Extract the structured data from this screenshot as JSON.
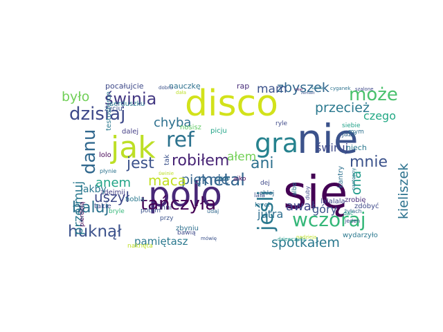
{
  "cloud": {
    "words": [
      {
        "text": "się",
        "color": "#440154",
        "vertical": false
      },
      {
        "text": "nie",
        "color": "#3b528b",
        "vertical": false
      },
      {
        "text": "disco",
        "color": "#d2e21b",
        "vertical": false
      },
      {
        "text": "polo",
        "color": "#482878",
        "vertical": false
      },
      {
        "text": "jak",
        "color": "#bddf26",
        "vertical": false
      },
      {
        "text": "gra",
        "color": "#26828e",
        "vertical": false
      },
      {
        "text": "ref",
        "color": "#2c728e",
        "vertical": false
      },
      {
        "text": "danu",
        "color": "#31688e",
        "vertical": true
      },
      {
        "text": "wczoraj",
        "color": "#35b779",
        "vertical": false
      },
      {
        "text": "tańczyła",
        "color": "#440154",
        "vertical": false
      },
      {
        "text": "jeśli",
        "color": "#2a788e",
        "vertical": true
      },
      {
        "text": "metal",
        "color": "#32658e",
        "vertical": false
      },
      {
        "text": "może",
        "color": "#4ac16d",
        "vertical": false
      },
      {
        "text": "dzisiaj",
        "color": "#3e4989",
        "vertical": false
      },
      {
        "text": "huknął",
        "color": "#3b518b",
        "vertical": false
      },
      {
        "text": "baluj",
        "color": "#2c728e",
        "vertical": false
      },
      {
        "text": "świnia",
        "color": "#443983",
        "vertical": false
      },
      {
        "text": "mnie",
        "color": "#3b528b",
        "vertical": false
      },
      {
        "text": "ani",
        "color": "#2d708e",
        "vertical": false
      },
      {
        "text": "jest",
        "color": "#3b528b",
        "vertical": false
      },
      {
        "text": "robiłem",
        "color": "#482475",
        "vertical": false
      },
      {
        "text": "było",
        "color": "#70cf57",
        "vertical": false
      },
      {
        "text": "pięknie",
        "color": "#33638d",
        "vertical": false
      },
      {
        "text": "przecież",
        "color": "#2a788e",
        "vertical": false
      },
      {
        "text": "spotkałem",
        "color": "#2a788e",
        "vertical": false
      },
      {
        "text": "zbyszek",
        "color": "#31688e",
        "vertical": false
      },
      {
        "text": "maca",
        "color": "#c2df23",
        "vertical": false
      },
      {
        "text": "uszył",
        "color": "#3e4989",
        "vertical": false
      },
      {
        "text": "ona",
        "color": "#1f9a8a",
        "vertical": true
      },
      {
        "text": "awał",
        "color": "#3f4788",
        "vertical": false
      },
      {
        "text": "chyba",
        "color": "#2d708e",
        "vertical": false
      },
      {
        "text": "przejmuj",
        "color": "#2a788e",
        "vertical": true
      },
      {
        "text": "kieliszek",
        "color": "#2c728e",
        "vertical": true
      },
      {
        "text": "pamiętasz",
        "color": "#2a788e",
        "vertical": false
      },
      {
        "text": "anem",
        "color": "#20a386",
        "vertical": false
      },
      {
        "text": "ałem",
        "color": "#73d056",
        "vertical": false
      },
      {
        "text": "mam",
        "color": "#3b528b",
        "vertical": false
      },
      {
        "text": "jutra",
        "color": "#2e6e8e",
        "vertical": false
      },
      {
        "text": "góry",
        "color": "#3b528b",
        "vertical": false
      },
      {
        "text": "świruj",
        "color": "#3e4989",
        "vertical": false
      },
      {
        "text": "czego",
        "color": "#22a884",
        "vertical": false
      },
      {
        "text": "jakby",
        "color": "#2a788e",
        "vertical": false
      },
      {
        "text": "pocałujcie",
        "color": "#3e4989",
        "vertical": false
      },
      {
        "text": "nauczkę",
        "color": "#2d708e",
        "vertical": false
      },
      {
        "text": "rap",
        "color": "#472c7a",
        "vertical": false
      },
      {
        "text": "życiu",
        "color": "#3b528b",
        "vertical": false
      },
      {
        "text": "dalej",
        "color": "#433e85",
        "vertical": false
      },
      {
        "text": "nosisz",
        "color": "#5ec962",
        "vertical": false
      },
      {
        "text": "picju",
        "color": "#20a386",
        "vertical": false
      },
      {
        "text": "jazz",
        "color": "#33638d",
        "vertical": false
      },
      {
        "text": "mym",
        "color": "#2d708e",
        "vertical": false
      },
      {
        "text": "siebie",
        "color": "#1fa188",
        "vertical": false
      },
      {
        "text": "ryle",
        "color": "#3e4989",
        "vertical": false
      },
      {
        "text": "niech",
        "color": "#2a788e",
        "vertical": false
      },
      {
        "text": "lalalala",
        "color": "#3f4788",
        "vertical": false
      },
      {
        "text": "zrobię",
        "color": "#472c7a",
        "vertical": false
      },
      {
        "text": "lolo",
        "color": "#440154",
        "vertical": false
      },
      {
        "text": "płynie",
        "color": "#2c728e",
        "vertical": false
      },
      {
        "text": "tak",
        "color": "#3b528b",
        "vertical": true
      },
      {
        "text": "świnie",
        "color": "#bddf26",
        "vertical": false
      },
      {
        "text": "udaje",
        "color": "#2c728e",
        "vertical": false
      },
      {
        "text": "aiko",
        "color": "#440154",
        "vertical": false
      },
      {
        "text": "dej",
        "color": "#3e4989",
        "vertical": false
      },
      {
        "text": "chlej",
        "color": "#31688e",
        "vertical": false
      },
      {
        "text": "albo",
        "color": "#2a788e",
        "vertical": true
      },
      {
        "text": "lala",
        "color": "#3b528b",
        "vertical": false
      },
      {
        "text": "kantry",
        "color": "#2d708e",
        "vertical": true
      },
      {
        "text": "takie",
        "color": "#3e4989",
        "vertical": false
      },
      {
        "text": "zdejmij",
        "color": "#433e85",
        "vertical": false
      },
      {
        "text": "nobla",
        "color": "#2a788e",
        "vertical": false
      },
      {
        "text": "potem",
        "color": "#3b528b",
        "vertical": false
      },
      {
        "text": "bryle",
        "color": "#35b779",
        "vertical": false
      },
      {
        "text": "inni",
        "color": "#3e4989",
        "vertical": false
      },
      {
        "text": "udaj",
        "color": "#31688e",
        "vertical": false
      },
      {
        "text": "level",
        "color": "#2c728e",
        "vertical": false
      },
      {
        "text": "żyłach",
        "color": "#31688e",
        "vertical": false
      },
      {
        "text": "wydarzyło",
        "color": "#2a788e",
        "vertical": false
      },
      {
        "text": "bawią",
        "color": "#3e4989",
        "vertical": false
      },
      {
        "text": "mówię",
        "color": "#3b528b",
        "vertical": false
      },
      {
        "text": "dziewczyna",
        "color": "#1f9a8a",
        "vertical": false
      },
      {
        "text": "nadzieja",
        "color": "#bddf26",
        "vertical": false
      },
      {
        "text": "dać",
        "color": "#20a386",
        "vertical": false
      },
      {
        "text": "zdobyć",
        "color": "#3e4989",
        "vertical": false
      },
      {
        "text": "przy",
        "color": "#3b528b",
        "vertical": false
      },
      {
        "text": "dobra",
        "color": "#3b528b",
        "vertical": false
      },
      {
        "text": "serduszku",
        "color": "#2a788e",
        "vertical": false
      },
      {
        "text": "testosteron",
        "color": "#2a788e",
        "vertical": true
      },
      {
        "text": "zbyniu",
        "color": "#2d708e",
        "vertical": false
      },
      {
        "text": "pierdolą",
        "color": "#440154",
        "vertical": true
      },
      {
        "text": "jeden",
        "color": "#3b528b",
        "vertical": false
      },
      {
        "text": "następny",
        "color": "#2a788e",
        "vertical": true
      },
      {
        "text": "duby",
        "color": "#3e4989",
        "vertical": true
      },
      {
        "text": "naknęta",
        "color": "#bddf26",
        "vertical": false
      },
      {
        "text": "cyganek",
        "color": "#2c728e",
        "vertical": false
      },
      {
        "text": "szalone",
        "color": "#3e4989",
        "vertical": false
      },
      {
        "text": "miał",
        "color": "#440154",
        "vertical": false
      },
      {
        "text": "zamiast",
        "color": "#3b528b",
        "vertical": false
      },
      {
        "text": "sama",
        "color": "#2a788e",
        "vertical": false
      },
      {
        "text": "dała",
        "color": "#bddf26",
        "vertical": false
      }
    ]
  }
}
